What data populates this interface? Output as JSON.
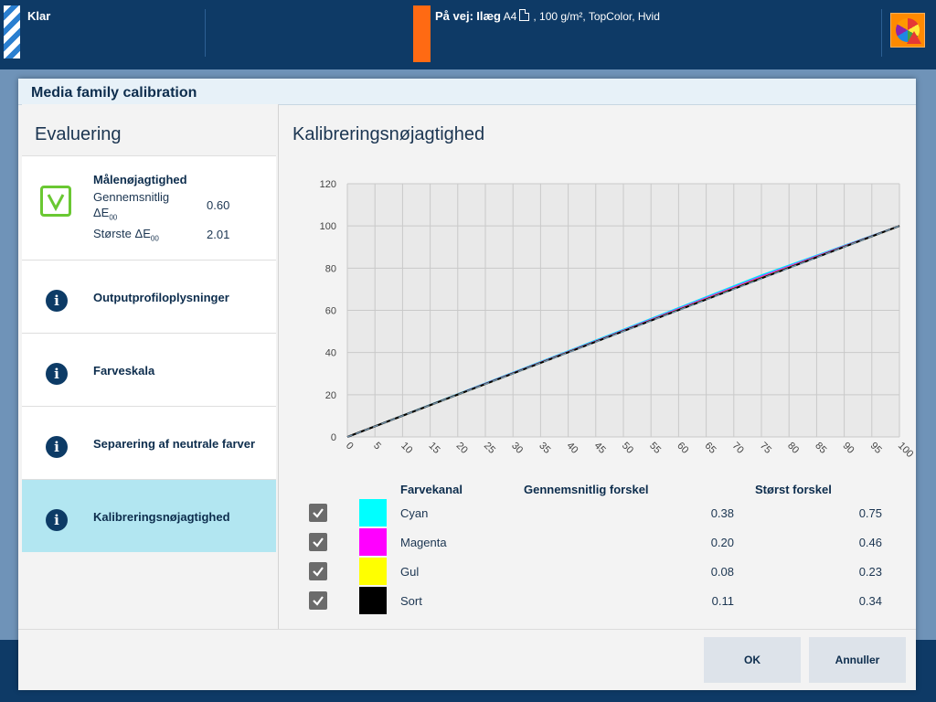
{
  "topbar": {
    "status": "Klar",
    "job_prefix": "På vej:",
    "job_tray": "Ilæg",
    "job_size": "A4",
    "job_details": ", 100 g/m², TopColor, Hvid",
    "warning_icon": "color-wheel-warning-icon"
  },
  "dialog": {
    "title": "Media family calibration",
    "left_heading": "Evaluering",
    "content_title": "Kalibreringsnøjagtighed",
    "measurement": {
      "title": "Målenøjagtighed",
      "avg_label": "Gennemsnitlig",
      "avg_label2": "ΔE",
      "avg_sub": "00",
      "avg_value": "0.60",
      "max_label": "Største ΔE",
      "max_sub": "00",
      "max_value": "2.01"
    },
    "nav_items": [
      {
        "label": "Outputprofiloplysninger",
        "icon": "info-icon"
      },
      {
        "label": "Farveskala",
        "icon": "info-icon"
      },
      {
        "label": "Separering af neutrale farver",
        "icon": "info-icon"
      },
      {
        "label": "Kalibreringsnøjagtighed",
        "icon": "info-icon",
        "selected": true
      }
    ],
    "table": {
      "col_channel": "Farvekanal",
      "col_avg": "Gennemsnitlig forskel",
      "col_max": "Størst forskel",
      "rows": [
        {
          "name": "Cyan",
          "color": "#00ffff",
          "avg": "0.38",
          "max": "0.75",
          "checked": true
        },
        {
          "name": "Magenta",
          "color": "#ff00ff",
          "avg": "0.20",
          "max": "0.46",
          "checked": true
        },
        {
          "name": "Gul",
          "color": "#ffff00",
          "avg": "0.08",
          "max": "0.23",
          "checked": true
        },
        {
          "name": "Sort",
          "color": "#000000",
          "avg": "0.11",
          "max": "0.34",
          "checked": true
        }
      ]
    },
    "buttons": {
      "ok": "OK",
      "cancel": "Annuller"
    }
  },
  "chart_data": {
    "type": "line",
    "title": "",
    "xlabel": "",
    "ylabel": "",
    "xlim": [
      0,
      100
    ],
    "ylim": [
      0,
      120
    ],
    "xticks": [
      0,
      5,
      10,
      15,
      20,
      25,
      30,
      35,
      40,
      45,
      50,
      55,
      60,
      65,
      70,
      75,
      80,
      85,
      90,
      95,
      100
    ],
    "yticks": [
      0,
      20,
      40,
      60,
      80,
      100,
      120
    ],
    "grid": true,
    "series": [
      {
        "color": "#00e5ff",
        "x": [
          0,
          50,
          75,
          100
        ],
        "y": [
          0,
          50.8,
          76.6,
          100
        ]
      },
      {
        "color": "#ff00ff",
        "x": [
          0,
          50,
          75,
          100
        ],
        "y": [
          0,
          50.4,
          75.9,
          100
        ]
      },
      {
        "color": "#c8c800",
        "x": [
          0,
          50,
          75,
          100
        ],
        "y": [
          0,
          50.2,
          75.4,
          100
        ]
      },
      {
        "color": "#000000",
        "x": [
          0,
          50,
          75,
          100
        ],
        "y": [
          0,
          50.1,
          75.2,
          100
        ]
      },
      {
        "color": "#6f8fa8",
        "x": [
          0,
          100
        ],
        "y": [
          0,
          100
        ]
      }
    ]
  }
}
